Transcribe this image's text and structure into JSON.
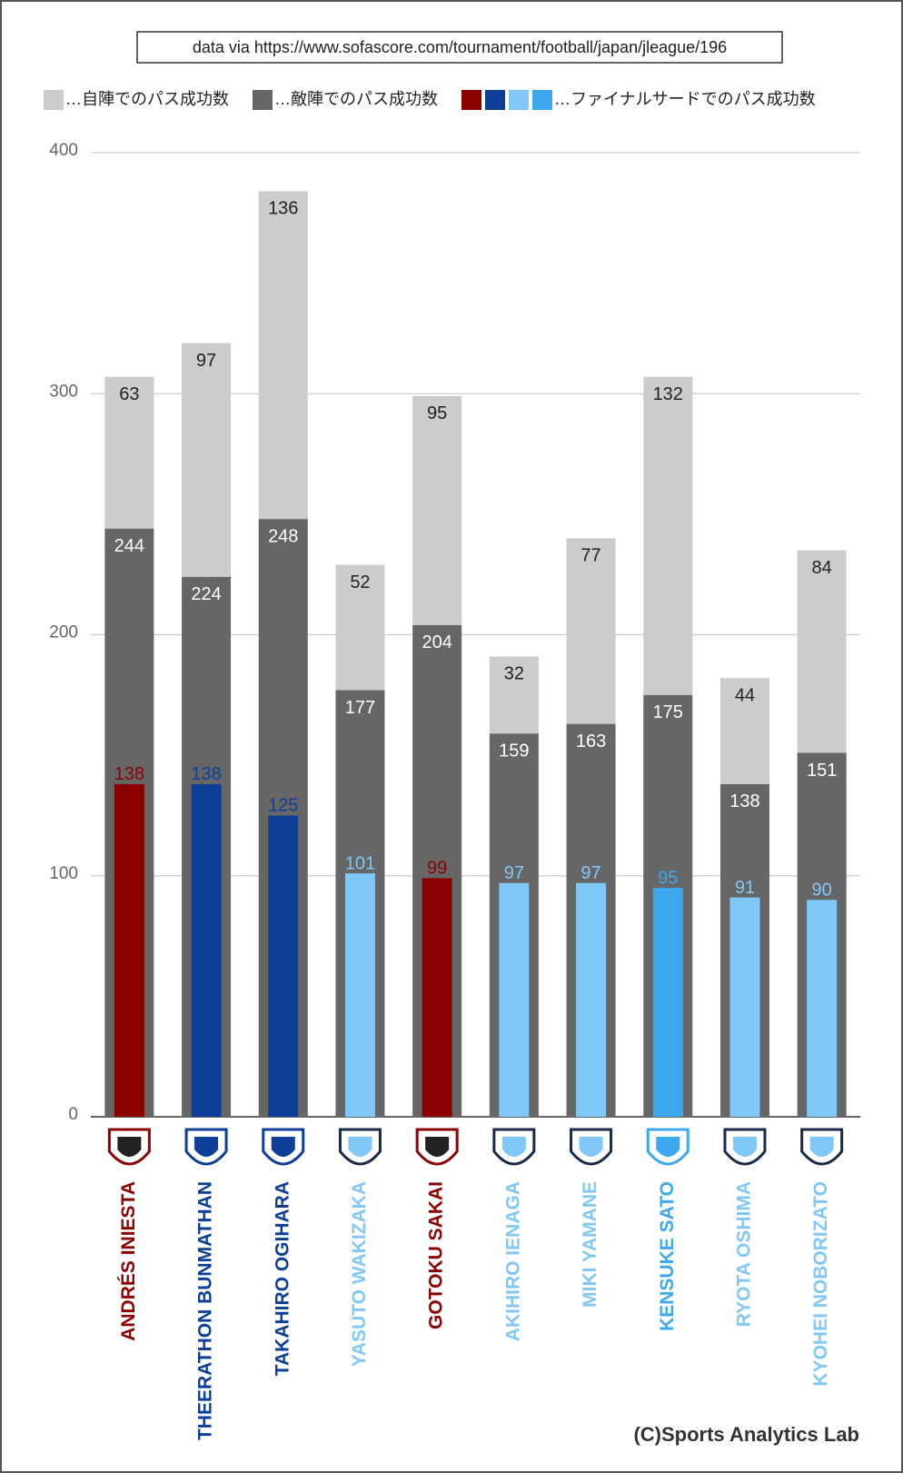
{
  "chart_data": {
    "type": "bar",
    "source": "data via https://www.sofascore.com/tournament/football/japan/jleague/196",
    "credit": "(C)Sports Analytics Lab",
    "categories": [
      "ANDRÉS INIESTA",
      "THEERATHON BUNMATHAN",
      "TAKAHIRO OGIHARA",
      "YASUTO WAKIZAKA",
      "GOTOKU SAKAI",
      "AKIHIRO IENAGA",
      "MIKI YAMANE",
      "KENSUKE SATO",
      "RYOTA OSHIMA",
      "KYOHEI NOBORIZATO"
    ],
    "category_colors": [
      "#8b0000",
      "#0d3f99",
      "#0d3f99",
      "#80c8f8",
      "#8b0000",
      "#80c8f8",
      "#80c8f8",
      "#3ea8ee",
      "#80c8f8",
      "#80c8f8"
    ],
    "series": [
      {
        "name": "…自陣でのパス成功数",
        "color": "#cccccc",
        "values": [
          63,
          97,
          136,
          52,
          95,
          32,
          77,
          132,
          44,
          84
        ]
      },
      {
        "name": "…敵陣でのパス成功数",
        "color": "#666666",
        "values": [
          244,
          224,
          248,
          177,
          204,
          159,
          163,
          175,
          138,
          151
        ]
      },
      {
        "name": "…ファイナルサードでのパス成功数",
        "colors": [
          "#8b0000",
          "#0d3f99",
          "#0d3f99",
          "#80c8f8",
          "#8b0000",
          "#80c8f8",
          "#80c8f8",
          "#3ea8ee",
          "#80c8f8",
          "#80c8f8"
        ],
        "values": [
          138,
          138,
          125,
          101,
          99,
          97,
          97,
          95,
          91,
          90
        ]
      }
    ],
    "ylim": [
      0,
      400
    ],
    "yticks": [
      0,
      100,
      200,
      300,
      400
    ],
    "grid": true
  }
}
